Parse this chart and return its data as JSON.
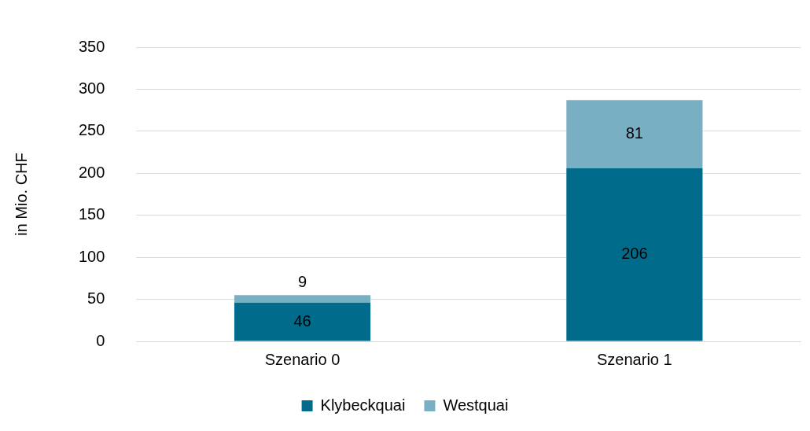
{
  "chart_data": {
    "type": "bar",
    "ylabel": "in Mio. CHF",
    "categories": [
      "Szenario 0",
      "Szenario 1"
    ],
    "stacked": true,
    "ylim": [
      0,
      350
    ],
    "yticks": [
      0,
      50,
      100,
      150,
      200,
      250,
      300,
      350
    ],
    "grid": "y",
    "legend": "bottom",
    "data_labels": true,
    "series": [
      {
        "name": "Klybeckquai",
        "color": "#006b8a",
        "values": [
          46,
          206
        ]
      },
      {
        "name": "Westquai",
        "color": "#79afc2",
        "values": [
          9,
          81
        ]
      }
    ]
  }
}
